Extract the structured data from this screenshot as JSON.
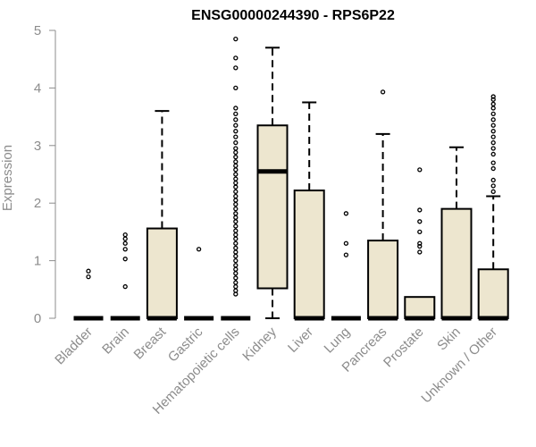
{
  "chart_data": {
    "type": "box",
    "title": "ENSG00000244390 - RPS6P22",
    "ylabel": "Expression",
    "xlabel": "",
    "ylim": [
      0,
      5
    ],
    "yticks": [
      "0",
      "1",
      "2",
      "3",
      "4",
      "5"
    ],
    "box_fill": "#ede6cf",
    "axis_color": "#8c8c8c",
    "grid": false,
    "categories": [
      "Bladder",
      "Brain",
      "Breast",
      "Gastric",
      "Hematopoietic cells",
      "Kidney",
      "Liver",
      "Lung",
      "Pancreas",
      "Prostate",
      "Skin",
      "Unknown / Other"
    ],
    "boxes": [
      {
        "q1": 0,
        "median": 0,
        "q3": 0,
        "whisker_low": 0,
        "whisker_high": 0,
        "outliers": [
          0.72,
          0.82
        ]
      },
      {
        "q1": 0,
        "median": 0,
        "q3": 0,
        "whisker_low": 0,
        "whisker_high": 0,
        "outliers": [
          0.55,
          1.03,
          1.2,
          1.3,
          1.38,
          1.45
        ]
      },
      {
        "q1": 0,
        "median": 0,
        "q3": 1.56,
        "whisker_low": 0,
        "whisker_high": 3.6,
        "outliers": []
      },
      {
        "q1": 0,
        "median": 0,
        "q3": 0,
        "whisker_low": 0,
        "whisker_high": 0,
        "outliers": [
          1.2
        ]
      },
      {
        "q1": 0,
        "median": 0,
        "q3": 0,
        "whisker_low": 0,
        "whisker_high": 0,
        "outliers": [
          0.42,
          0.48,
          0.55,
          0.62,
          0.7,
          0.78,
          0.85,
          0.92,
          1.0,
          1.08,
          1.15,
          1.22,
          1.3,
          1.38,
          1.45,
          1.52,
          1.6,
          1.68,
          1.75,
          1.82,
          1.9,
          1.98,
          2.05,
          2.12,
          2.2,
          2.28,
          2.35,
          2.42,
          2.5,
          2.58,
          2.65,
          2.72,
          2.8,
          2.88,
          2.95,
          3.05,
          3.15,
          3.25,
          3.35,
          3.45,
          3.55,
          3.65,
          4.0,
          4.35,
          4.52,
          4.85
        ]
      },
      {
        "q1": 0.52,
        "median": 2.55,
        "q3": 3.35,
        "whisker_low": 0,
        "whisker_high": 4.7,
        "outliers": []
      },
      {
        "q1": 0,
        "median": 0,
        "q3": 2.22,
        "whisker_low": 0,
        "whisker_high": 3.75,
        "outliers": []
      },
      {
        "q1": 0,
        "median": 0,
        "q3": 0,
        "whisker_low": 0,
        "whisker_high": 0,
        "outliers": [
          1.1,
          1.3,
          1.82
        ]
      },
      {
        "q1": 0,
        "median": 0,
        "q3": 1.35,
        "whisker_low": 0,
        "whisker_high": 3.2,
        "outliers": [
          3.93
        ]
      },
      {
        "q1": 0,
        "median": 0,
        "q3": 0.37,
        "whisker_low": 0,
        "whisker_high": 0.37,
        "outliers": [
          1.15,
          1.25,
          1.3,
          1.5,
          1.68,
          1.88,
          2.58
        ]
      },
      {
        "q1": 0,
        "median": 0,
        "q3": 1.9,
        "whisker_low": 0,
        "whisker_high": 2.97,
        "outliers": []
      },
      {
        "q1": 0,
        "median": 0,
        "q3": 0.85,
        "whisker_low": 0,
        "whisker_high": 2.12,
        "outliers": [
          2.2,
          2.3,
          2.4,
          2.6,
          2.7,
          2.85,
          2.95,
          3.05,
          3.15,
          3.25,
          3.35,
          3.45,
          3.55,
          3.65,
          3.72,
          3.8,
          3.85
        ]
      }
    ]
  }
}
